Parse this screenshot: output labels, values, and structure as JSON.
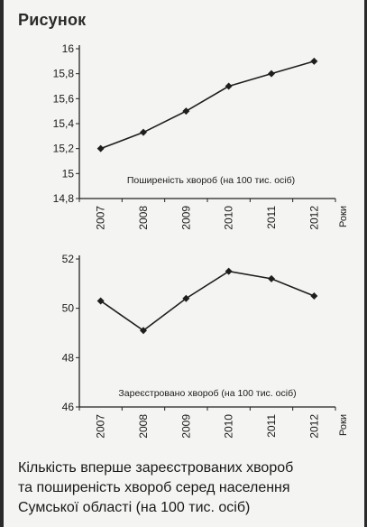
{
  "figure_label": "Рисунок",
  "caption_lines": [
    "Кількість вперше зареєстрованих хвороб",
    "та поширеність хвороб серед населення",
    "Сумської області (на 100 тис. осіб)"
  ],
  "chart_data": [
    {
      "type": "line",
      "title": "Поширеність хвороб (на 100 тис. осіб)",
      "xlabel": "Роки",
      "ylabel": "",
      "categories": [
        "2007",
        "2008",
        "2009",
        "2010",
        "2011",
        "2012"
      ],
      "values": [
        15.2,
        15.33,
        15.5,
        15.7,
        15.8,
        15.9
      ],
      "ylim": [
        14.8,
        16
      ],
      "yticks": [
        "14,8",
        "15",
        "15,2",
        "15,4",
        "15,6",
        "15,8",
        "16"
      ],
      "grid": false,
      "colors": {
        "line": "#1e1e1e",
        "marker": "#1e1e1e"
      }
    },
    {
      "type": "line",
      "title": "Зареєстровано хвороб (на 100 тис. осіб)",
      "xlabel": "Роки",
      "ylabel": "",
      "categories": [
        "2007",
        "2008",
        "2009",
        "2010",
        "2011",
        "2012"
      ],
      "values": [
        50.3,
        49.1,
        50.4,
        51.5,
        51.2,
        50.5
      ],
      "ylim": [
        46,
        52
      ],
      "yticks": [
        "46",
        "48",
        "50",
        "52"
      ],
      "grid": false,
      "colors": {
        "line": "#1e1e1e",
        "marker": "#1e1e1e"
      }
    }
  ]
}
